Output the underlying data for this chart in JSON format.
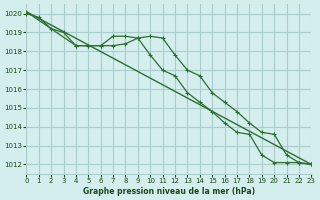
{
  "title": "Graphe pression niveau de la mer (hPa)",
  "bg_color": "#d4eeee",
  "grid_color": "#aacccc",
  "line_color": "#2d6e2d",
  "text_color": "#1a4a1a",
  "xlim": [
    0,
    23
  ],
  "ylim": [
    1011.5,
    1020.5
  ],
  "yticks": [
    1012,
    1013,
    1014,
    1015,
    1016,
    1017,
    1018,
    1019,
    1020
  ],
  "xticks": [
    0,
    1,
    2,
    3,
    4,
    5,
    6,
    7,
    8,
    9,
    10,
    11,
    12,
    13,
    14,
    15,
    16,
    17,
    18,
    19,
    20,
    21,
    22,
    23
  ],
  "line1_x": [
    0,
    1,
    2,
    3,
    4,
    5,
    6,
    7,
    8,
    9,
    10,
    11,
    12,
    13,
    14,
    15,
    16,
    17,
    18,
    19,
    20,
    21,
    22,
    23
  ],
  "line1_y": [
    1020.0,
    1019.8,
    1019.2,
    1019.0,
    1018.3,
    1018.3,
    1018.3,
    1018.3,
    1018.4,
    1018.7,
    1018.8,
    1018.7,
    1017.8,
    1017.0,
    1016.7,
    1015.8,
    1015.3,
    1014.8,
    1014.2,
    1013.7,
    1013.6,
    1012.5,
    1012.1,
    1012.0
  ],
  "line2_x": [
    0,
    4,
    5,
    6,
    7,
    8,
    9,
    10,
    11,
    12,
    13,
    14,
    15,
    16,
    17,
    18,
    19,
    20,
    21,
    22,
    23
  ],
  "line2_y": [
    1020.1,
    1018.3,
    1018.3,
    1018.3,
    1018.8,
    1018.8,
    1018.7,
    1017.8,
    1017.0,
    1016.7,
    1015.8,
    1015.3,
    1014.8,
    1014.2,
    1013.7,
    1013.6,
    1012.5,
    1012.1,
    1012.1,
    1012.1,
    1012.0
  ],
  "line3_x": [
    0,
    23
  ],
  "line3_y": [
    1020.1,
    1012.0
  ]
}
